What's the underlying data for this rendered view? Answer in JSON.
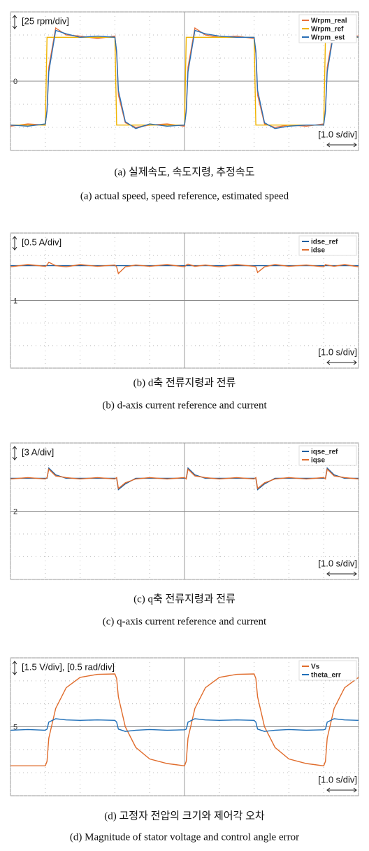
{
  "chart_data": [
    {
      "type": "line",
      "scale_label": "[25 rpm/div]",
      "time_label": "[1.0 s/div]",
      "marker": "0",
      "caption_ko": "(a) 실제속도, 속도지령, 추정속도",
      "caption_en": "(a) actual speed, speed reference, estimated speed",
      "x": [
        0,
        0.5,
        1,
        1.05,
        1.1,
        1.3,
        1.6,
        2,
        2.5,
        3,
        3.05,
        3.1,
        3.3,
        3.6,
        4,
        4.5,
        5,
        5.05,
        5.1,
        5.3,
        5.6,
        6,
        6.5,
        7,
        7.05,
        7.1,
        7.3,
        7.6,
        8,
        8.5,
        9,
        9.05,
        9.1,
        9.3,
        9.6,
        10
      ],
      "series": [
        {
          "name": "Wrpm_real",
          "color": "#e8703a",
          "values": [
            -1.95,
            -1.85,
            -1.9,
            -1.2,
            0.6,
            2.3,
            2.0,
            1.95,
            1.85,
            1.95,
            1.2,
            -0.6,
            -1.8,
            -2.0,
            -1.9,
            -1.85,
            -1.95,
            -1.2,
            0.6,
            2.3,
            2.0,
            1.9,
            1.95,
            1.85,
            1.2,
            -0.6,
            -1.85,
            -2.0,
            -1.9,
            -1.95,
            -1.85,
            -1.2,
            0.6,
            2.3,
            2.0,
            1.95
          ]
        },
        {
          "name": "Wrpm_ref",
          "color": "#f0b400",
          "values": [
            -1.9,
            -1.9,
            -1.9,
            1.9,
            1.9,
            1.9,
            1.9,
            1.9,
            1.9,
            1.9,
            -1.9,
            -1.9,
            -1.9,
            -1.9,
            -1.9,
            -1.9,
            -1.9,
            1.9,
            1.9,
            1.9,
            1.9,
            1.9,
            1.9,
            1.9,
            -1.9,
            -1.9,
            -1.9,
            -1.9,
            -1.9,
            -1.9,
            -1.9,
            1.9,
            1.9,
            1.9,
            1.9,
            1.9
          ]
        },
        {
          "name": "Wrpm_est",
          "color": "#2a6fb5",
          "values": [
            -1.9,
            -1.95,
            -1.85,
            -1.3,
            0.4,
            2.2,
            2.05,
            1.9,
            1.95,
            1.9,
            1.3,
            -0.4,
            -1.75,
            -2.05,
            -1.85,
            -1.95,
            -1.9,
            -1.3,
            0.4,
            2.2,
            2.05,
            1.95,
            1.9,
            1.9,
            1.3,
            -0.4,
            -1.8,
            -2.05,
            -1.95,
            -1.9,
            -1.9,
            -1.3,
            0.4,
            2.2,
            2.05,
            1.9
          ]
        }
      ],
      "xlim": [
        0,
        10
      ],
      "ylim": [
        -3,
        3
      ],
      "xticks": [
        0,
        1,
        2,
        3,
        4,
        5,
        6,
        7,
        8,
        9,
        10
      ],
      "yticks": [
        -3,
        -2,
        -1,
        0,
        1,
        2,
        3
      ],
      "grid": true,
      "legend": "upper right"
    },
    {
      "type": "line",
      "scale_label": "[0.5 A/div]",
      "time_label": "[1.0 s/div]",
      "marker": "1",
      "caption_ko": "(b) d축 전류지령과 전류",
      "caption_en": "(b) d-axis current reference and current",
      "x": [
        0,
        0.5,
        1,
        1.05,
        1.1,
        1.3,
        1.6,
        2,
        2.5,
        3,
        3.05,
        3.1,
        3.3,
        3.6,
        4,
        4.5,
        5,
        5.05,
        5.1,
        5.3,
        5.6,
        6,
        6.5,
        7,
        7.05,
        7.1,
        7.3,
        7.6,
        8,
        8.5,
        9,
        9.05,
        9.1,
        9.3,
        9.6,
        10
      ],
      "series": [
        {
          "name": "idse_ref",
          "color": "#1f5fa0",
          "values": [
            1.55,
            1.55,
            1.55,
            1.55,
            1.55,
            1.55,
            1.55,
            1.55,
            1.55,
            1.55,
            1.55,
            1.55,
            1.55,
            1.55,
            1.55,
            1.55,
            1.55,
            1.55,
            1.55,
            1.55,
            1.55,
            1.55,
            1.55,
            1.55,
            1.55,
            1.55,
            1.55,
            1.55,
            1.55,
            1.55,
            1.55,
            1.55,
            1.55,
            1.55,
            1.55,
            1.55
          ]
        },
        {
          "name": "idse",
          "color": "#e06c2c",
          "values": [
            1.5,
            1.6,
            1.52,
            1.58,
            1.7,
            1.55,
            1.5,
            1.6,
            1.52,
            1.58,
            1.5,
            1.2,
            1.5,
            1.58,
            1.52,
            1.6,
            1.5,
            1.58,
            1.62,
            1.52,
            1.58,
            1.5,
            1.6,
            1.52,
            1.5,
            1.25,
            1.5,
            1.6,
            1.52,
            1.58,
            1.5,
            1.6,
            1.58,
            1.52,
            1.6,
            1.5
          ]
        }
      ],
      "xlim": [
        0,
        10
      ],
      "ylim": [
        -3,
        3
      ],
      "xticks": [
        0,
        1,
        2,
        3,
        4,
        5,
        6,
        7,
        8,
        9,
        10
      ],
      "yticks": [
        -3,
        -2,
        -1,
        0,
        1,
        2,
        3
      ],
      "grid": true,
      "legend": "upper right"
    },
    {
      "type": "line",
      "scale_label": "[3 A/div]",
      "time_label": "[1.0 s/div]",
      "marker": "2",
      "caption_ko": "(c) q축 전류지령과 전류",
      "caption_en": "(c) q-axis current reference and current",
      "x": [
        0,
        0.5,
        1,
        1.05,
        1.1,
        1.3,
        1.6,
        2,
        2.5,
        3,
        3.05,
        3.1,
        3.3,
        3.6,
        4,
        4.5,
        5,
        5.05,
        5.1,
        5.3,
        5.6,
        6,
        6.5,
        7,
        7.05,
        7.1,
        7.3,
        7.6,
        8,
        8.5,
        9,
        9.05,
        9.1,
        9.3,
        9.6,
        10
      ],
      "series": [
        {
          "name": "iqse_ref",
          "color": "#1f5fa0",
          "values": [
            1.45,
            1.45,
            1.45,
            1.45,
            1.9,
            1.6,
            1.45,
            1.45,
            1.45,
            1.45,
            1.45,
            0.95,
            1.2,
            1.45,
            1.45,
            1.45,
            1.45,
            1.45,
            1.9,
            1.6,
            1.45,
            1.45,
            1.45,
            1.45,
            1.45,
            0.95,
            1.2,
            1.45,
            1.45,
            1.45,
            1.45,
            1.45,
            1.9,
            1.6,
            1.45,
            1.45
          ]
        },
        {
          "name": "iqse",
          "color": "#e06c2c",
          "values": [
            1.42,
            1.48,
            1.42,
            1.48,
            1.85,
            1.55,
            1.48,
            1.42,
            1.48,
            1.42,
            1.48,
            1.0,
            1.25,
            1.42,
            1.48,
            1.42,
            1.48,
            1.42,
            1.85,
            1.55,
            1.48,
            1.42,
            1.48,
            1.42,
            1.48,
            1.0,
            1.25,
            1.42,
            1.48,
            1.42,
            1.48,
            1.42,
            1.85,
            1.55,
            1.48,
            1.42
          ]
        }
      ],
      "xlim": [
        0,
        10
      ],
      "ylim": [
        -3,
        3
      ],
      "xticks": [
        0,
        1,
        2,
        3,
        4,
        5,
        6,
        7,
        8,
        9,
        10
      ],
      "yticks": [
        -3,
        -2,
        -1,
        0,
        1,
        2,
        3
      ],
      "grid": true,
      "legend": "upper right"
    },
    {
      "type": "line",
      "scale_label": "[1.5 V/div], [0.5 rad/div]",
      "time_label": "[1.0 s/div]",
      "marker": "5",
      "caption_ko": "(d) 고정자 전압의 크기와 제어각 오차",
      "caption_en": "(d) Magnitude of stator voltage and control angle error",
      "x": [
        0,
        0.5,
        1,
        1.05,
        1.1,
        1.3,
        1.6,
        2,
        2.5,
        3,
        3.05,
        3.1,
        3.3,
        3.6,
        4,
        4.5,
        5,
        5.05,
        5.1,
        5.3,
        5.6,
        6,
        6.5,
        7,
        7.05,
        7.1,
        7.3,
        7.6,
        8,
        8.5,
        9,
        9.05,
        9.1,
        9.3,
        9.6,
        10
      ],
      "series": [
        {
          "name": "Vs",
          "color": "#e06c2c",
          "values": [
            -1.7,
            -1.7,
            -1.7,
            -1.5,
            -0.5,
            0.8,
            1.7,
            2.15,
            2.28,
            2.3,
            2.1,
            1.3,
            0,
            -0.9,
            -1.4,
            -1.6,
            -1.7,
            -1.5,
            -0.5,
            0.8,
            1.7,
            2.15,
            2.28,
            2.3,
            2.1,
            1.3,
            0,
            -0.9,
            -1.4,
            -1.6,
            -1.7,
            -1.5,
            -0.5,
            0.8,
            1.7,
            2.15
          ]
        },
        {
          "name": "theta_err",
          "color": "#1f6fb8",
          "values": [
            -0.15,
            -0.12,
            -0.15,
            -0.1,
            0.2,
            0.35,
            0.3,
            0.28,
            0.3,
            0.28,
            0.2,
            -0.1,
            -0.2,
            -0.15,
            -0.12,
            -0.15,
            -0.13,
            -0.1,
            0.2,
            0.35,
            0.3,
            0.28,
            0.3,
            0.28,
            0.2,
            -0.1,
            -0.2,
            -0.15,
            -0.12,
            -0.15,
            -0.13,
            -0.1,
            0.2,
            0.35,
            0.3,
            0.28
          ]
        }
      ],
      "xlim": [
        0,
        10
      ],
      "ylim": [
        -3,
        3
      ],
      "xticks": [
        0,
        1,
        2,
        3,
        4,
        5,
        6,
        7,
        8,
        9,
        10
      ],
      "yticks": [
        -3,
        -2,
        -1,
        0,
        1,
        2,
        3
      ],
      "grid": true,
      "legend": "upper right"
    }
  ]
}
